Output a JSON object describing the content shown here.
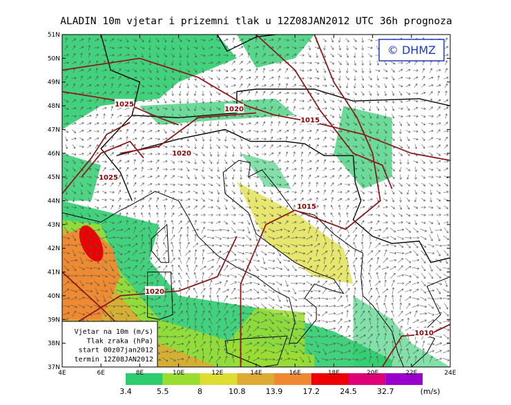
{
  "title": "ALADIN 10m vjetar i prizemni tlak u 12Z08JAN2012 UTC 36h prognoza",
  "logo": "© DHMZ",
  "lat_labels": [
    "51N",
    "50N",
    "49N",
    "48N",
    "47N",
    "46N",
    "45N",
    "44N",
    "43N",
    "42N",
    "41N",
    "40N",
    "39N",
    "38N",
    "37N"
  ],
  "lon_labels": [
    "4E",
    "6E",
    "8E",
    "10E",
    "12E",
    "14E",
    "16E",
    "18E",
    "20E",
    "22E",
    "24E"
  ],
  "isobar_labels": [
    "1025",
    "1020",
    "1015",
    "1020",
    "1025",
    "1015",
    "1020",
    "1010"
  ],
  "legend": [
    "Vjetar na 10m (m/s)",
    "Tlak zraka (hPa)",
    "start 00z07jan2012",
    "termin 12Z08JAN2012"
  ],
  "colorbar": {
    "levels": [
      "3.4",
      "5.5",
      "8",
      "10.8",
      "13.9",
      "17.2",
      "24.5",
      "32.7"
    ],
    "unit": "(m/s)",
    "colors": [
      "#2ecc6e",
      "#99dd33",
      "#dddd33",
      "#ddaa33",
      "#ee8833",
      "#ee0000",
      "#dd0077",
      "#9900cc"
    ]
  }
}
